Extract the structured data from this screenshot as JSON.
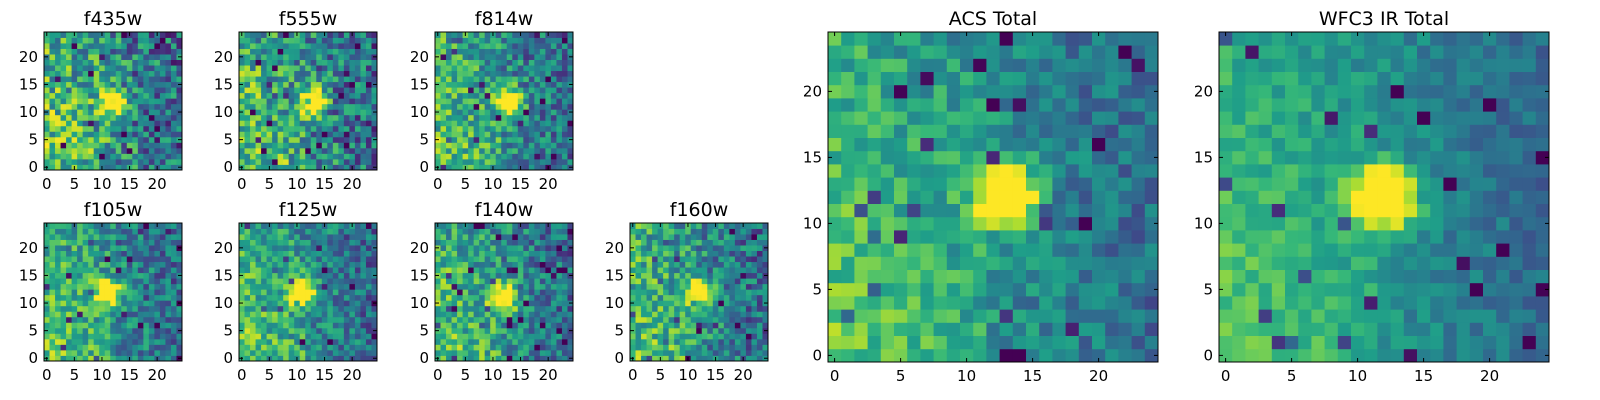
{
  "chart_data": [
    {
      "type": "heatmap",
      "title": "f435w",
      "grid": [
        25,
        25
      ],
      "xlim": [
        -0.5,
        24.5
      ],
      "ylim": [
        -0.5,
        24.5
      ],
      "xticks": [
        0,
        5,
        10,
        15,
        20
      ],
      "yticks": [
        0,
        5,
        10,
        15,
        20
      ],
      "colormap": "viridis",
      "center": [
        12,
        12
      ],
      "peak": 0.78,
      "noise": 0.62,
      "seed": 11,
      "vmin": 0.0,
      "vmax": 1.0
    },
    {
      "type": "heatmap",
      "title": "f555w",
      "grid": [
        25,
        25
      ],
      "xlim": [
        -0.5,
        24.5
      ],
      "ylim": [
        -0.5,
        24.5
      ],
      "xticks": [
        0,
        5,
        10,
        15,
        20
      ],
      "yticks": [
        0,
        5,
        10,
        15,
        20
      ],
      "colormap": "viridis",
      "center": [
        13,
        12
      ],
      "peak": 0.85,
      "noise": 0.6,
      "seed": 23,
      "vmin": 0.0,
      "vmax": 1.0
    },
    {
      "type": "heatmap",
      "title": "f814w",
      "grid": [
        25,
        25
      ],
      "xlim": [
        -0.5,
        24.5
      ],
      "ylim": [
        -0.5,
        24.5
      ],
      "xticks": [
        0,
        5,
        10,
        15,
        20
      ],
      "yticks": [
        0,
        5,
        10,
        15,
        20
      ],
      "colormap": "viridis",
      "center": [
        13,
        12
      ],
      "peak": 0.95,
      "noise": 0.5,
      "seed": 37,
      "vmin": 0.0,
      "vmax": 1.0
    },
    {
      "type": "heatmap",
      "title": "f105w",
      "grid": [
        25,
        25
      ],
      "xlim": [
        -0.5,
        24.5
      ],
      "ylim": [
        -0.5,
        24.5
      ],
      "xticks": [
        0,
        5,
        10,
        15,
        20
      ],
      "yticks": [
        0,
        5,
        10,
        15,
        20
      ],
      "colormap": "viridis",
      "center": [
        11,
        12
      ],
      "peak": 0.9,
      "noise": 0.45,
      "seed": 41,
      "vmin": 0.0,
      "vmax": 1.0
    },
    {
      "type": "heatmap",
      "title": "f125w",
      "grid": [
        25,
        25
      ],
      "xlim": [
        -0.5,
        24.5
      ],
      "ylim": [
        -0.5,
        24.5
      ],
      "xticks": [
        0,
        5,
        10,
        15,
        20
      ],
      "yticks": [
        0,
        5,
        10,
        15,
        20
      ],
      "colormap": "viridis",
      "center": [
        11,
        12
      ],
      "peak": 0.9,
      "noise": 0.45,
      "seed": 53,
      "vmin": 0.0,
      "vmax": 1.0
    },
    {
      "type": "heatmap",
      "title": "f140w",
      "grid": [
        25,
        25
      ],
      "xlim": [
        -0.5,
        24.5
      ],
      "ylim": [
        -0.5,
        24.5
      ],
      "xticks": [
        0,
        5,
        10,
        15,
        20
      ],
      "yticks": [
        0,
        5,
        10,
        15,
        20
      ],
      "colormap": "viridis",
      "center": [
        12,
        11
      ],
      "peak": 0.88,
      "noise": 0.48,
      "seed": 67,
      "vmin": 0.0,
      "vmax": 1.0
    },
    {
      "type": "heatmap",
      "title": "f160w",
      "grid": [
        25,
        25
      ],
      "xlim": [
        -0.5,
        24.5
      ],
      "ylim": [
        -0.5,
        24.5
      ],
      "xticks": [
        0,
        5,
        10,
        15,
        20
      ],
      "yticks": [
        0,
        5,
        10,
        15,
        20
      ],
      "colormap": "viridis",
      "center": [
        12,
        12
      ],
      "peak": 0.85,
      "noise": 0.5,
      "seed": 79,
      "vmin": 0.0,
      "vmax": 1.0
    },
    {
      "type": "heatmap",
      "title": "ACS Total",
      "grid": [
        25,
        25
      ],
      "xlim": [
        -0.5,
        24.5
      ],
      "ylim": [
        -0.5,
        24.5
      ],
      "xticks": [
        0,
        5,
        10,
        15,
        20
      ],
      "yticks": [
        0,
        5,
        10,
        15,
        20
      ],
      "colormap": "viridis",
      "center": [
        13,
        12
      ],
      "peak": 1.0,
      "noise": 0.32,
      "seed": 97,
      "vmin": 0.0,
      "vmax": 1.0
    },
    {
      "type": "heatmap",
      "title": "WFC3 IR Total",
      "grid": [
        25,
        25
      ],
      "xlim": [
        -0.5,
        24.5
      ],
      "ylim": [
        -0.5,
        24.5
      ],
      "xticks": [
        0,
        5,
        10,
        15,
        20
      ],
      "yticks": [
        0,
        5,
        10,
        15,
        20
      ],
      "colormap": "viridis",
      "center": [
        12,
        12
      ],
      "peak": 1.0,
      "noise": 0.22,
      "seed": 131,
      "vmin": 0.0,
      "vmax": 1.0
    }
  ]
}
